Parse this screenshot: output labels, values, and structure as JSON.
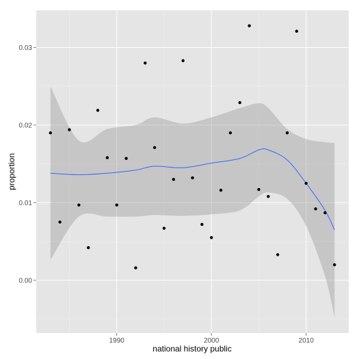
{
  "chart_data": {
    "type": "scatter",
    "title": "",
    "xlabel": "national history public",
    "ylabel": "proportion",
    "xlim": [
      1981.5,
      2014.5
    ],
    "ylim": [
      -0.0068,
      0.0348
    ],
    "x_ticks": [
      1990,
      2000,
      2010
    ],
    "x_tick_labels": [
      "1990",
      "2000",
      "2010"
    ],
    "y_ticks": [
      0.0,
      0.01,
      0.02,
      0.03
    ],
    "y_tick_labels": [
      "0.00",
      "0.01",
      "0.02",
      "0.03"
    ],
    "grid": true,
    "legend": "none",
    "points": {
      "x": [
        1983,
        1984,
        1985,
        1986,
        1987,
        1988,
        1989,
        1990,
        1991,
        1992,
        1993,
        1994,
        1995,
        1996,
        1997,
        1998,
        1999,
        2000,
        2001,
        2002,
        2003,
        2004,
        2005,
        2006,
        2007,
        2008,
        2009,
        2010,
        2011,
        2012,
        2013
      ],
      "y": [
        0.019,
        0.0075,
        0.0194,
        0.0097,
        0.0042,
        0.0219,
        0.0158,
        0.0097,
        0.0157,
        0.0016,
        0.028,
        0.0171,
        0.0067,
        0.013,
        0.0283,
        0.0132,
        0.0072,
        0.0055,
        0.0116,
        0.019,
        0.0229,
        0.0328,
        0.0117,
        0.0108,
        0.0033,
        0.019,
        0.0321,
        0.0125,
        0.0092,
        0.0087,
        0.002
      ]
    },
    "smooth": {
      "x": [
        1983,
        1986,
        1989,
        1992,
        1994,
        1997,
        2000,
        2003,
        2005,
        2006,
        2008,
        2010,
        2012,
        2013
      ],
      "y": [
        0.0138,
        0.0136,
        0.0138,
        0.0142,
        0.0147,
        0.0145,
        0.0151,
        0.0157,
        0.0168,
        0.0168,
        0.0155,
        0.0125,
        0.009,
        0.0065
      ],
      "upper": [
        0.025,
        0.018,
        0.0195,
        0.02,
        0.021,
        0.0202,
        0.021,
        0.0222,
        0.0228,
        0.0222,
        0.0195,
        0.0182,
        0.0178,
        0.0177
      ],
      "lower": [
        0.0026,
        0.0082,
        0.0082,
        0.0082,
        0.0084,
        0.0083,
        0.0085,
        0.009,
        0.0108,
        0.0113,
        0.0105,
        0.007,
        0.0005,
        -0.0048
      ]
    },
    "colors": {
      "panel_background": "#e5e5e5",
      "grid_major": "#ffffff",
      "grid_minor": "#f2f2f2",
      "points": "#000000",
      "smooth_line": "#3366ff",
      "ribbon": "#999999"
    }
  }
}
